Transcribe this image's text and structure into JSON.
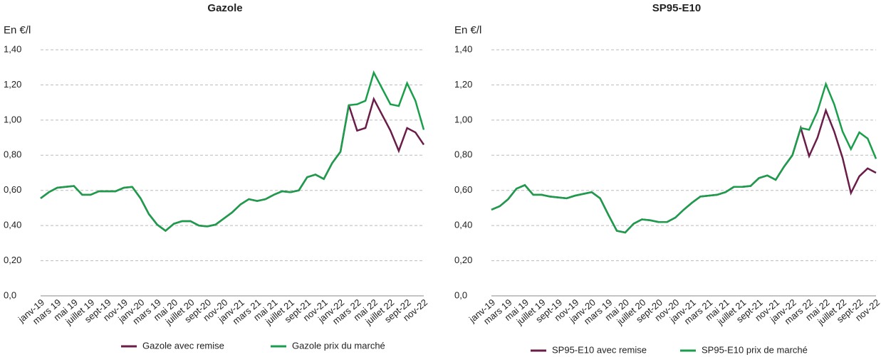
{
  "chart_data": [
    {
      "type": "line",
      "title": "Gazole",
      "y_label": "En €/l",
      "categories": [
        "janv-19",
        null,
        "mars 19",
        null,
        "mai 19",
        null,
        "juillet 19",
        null,
        "sept-19",
        null,
        "nov-19",
        null,
        "janv-20",
        null,
        "mars 19",
        null,
        "mai 20",
        null,
        "juillet 20",
        null,
        "sept-20",
        null,
        "nov-20",
        null,
        "janv-21",
        null,
        "mars 21",
        null,
        "mai 21",
        null,
        "juillet 21",
        null,
        "sept-21",
        null,
        "nov-21",
        null,
        "janv-22",
        null,
        "mars 22",
        null,
        "mai 22",
        null,
        "juillet 22",
        null,
        "sept-22",
        null,
        "nov-22"
      ],
      "series": [
        {
          "name": "Gazole avec remise",
          "color": "#6b1d4a",
          "values": [
            0.555,
            0.59,
            0.615,
            0.62,
            0.625,
            0.575,
            0.575,
            0.595,
            0.595,
            0.595,
            0.615,
            0.62,
            0.555,
            0.465,
            0.405,
            0.37,
            0.41,
            0.425,
            0.425,
            0.4,
            0.395,
            0.405,
            0.44,
            0.475,
            0.52,
            0.55,
            0.54,
            0.55,
            0.575,
            0.595,
            0.59,
            0.6,
            0.675,
            0.69,
            0.665,
            0.755,
            0.82,
            1.085,
            0.94,
            0.955,
            1.12,
            1.03,
            0.94,
            0.825,
            0.955,
            0.93,
            0.86
          ]
        },
        {
          "name": "Gazole prix du marché",
          "color": "#1a9e4b",
          "values": [
            0.555,
            0.59,
            0.615,
            0.62,
            0.625,
            0.575,
            0.575,
            0.595,
            0.595,
            0.595,
            0.615,
            0.62,
            0.555,
            0.465,
            0.405,
            0.37,
            0.41,
            0.425,
            0.425,
            0.4,
            0.395,
            0.405,
            0.44,
            0.475,
            0.52,
            0.55,
            0.54,
            0.55,
            0.575,
            0.595,
            0.59,
            0.6,
            0.675,
            0.69,
            0.665,
            0.755,
            0.82,
            1.085,
            1.09,
            1.11,
            1.27,
            1.18,
            1.09,
            1.08,
            1.21,
            1.11,
            0.945
          ]
        }
      ],
      "ylim": [
        0,
        1.4
      ],
      "yticks": [
        {
          "value": 0,
          "label": "0,0"
        },
        {
          "value": 0.2,
          "label": "0,20"
        },
        {
          "value": 0.4,
          "label": "0,40"
        },
        {
          "value": 0.6,
          "label": "0,60"
        },
        {
          "value": 0.8,
          "label": "0,80"
        },
        {
          "value": 1.0,
          "label": "1,00"
        },
        {
          "value": 1.2,
          "label": "1,20"
        },
        {
          "value": 1.4,
          "label": "1,40"
        }
      ],
      "grid": true,
      "legend": "bottom"
    },
    {
      "type": "line",
      "title": "SP95-E10",
      "y_label": "En €/l",
      "categories": [
        "janv-19",
        null,
        "mars 19",
        null,
        "mai 19",
        null,
        "juillet 19",
        null,
        "sept-19",
        null,
        "nov-19",
        null,
        "janv-20",
        null,
        "mars 19",
        null,
        "mai 20",
        null,
        "juillet 20",
        null,
        "sept-20",
        null,
        "nov-20",
        null,
        "janv-21",
        null,
        "mars 21",
        null,
        "mai 21",
        null,
        "juillet 21",
        null,
        "sept-21",
        null,
        "nov-21",
        null,
        "janv-22",
        null,
        "mars 22",
        null,
        "mai 22",
        null,
        "juillet 22",
        null,
        "sept-22",
        null,
        "nov-22"
      ],
      "series": [
        {
          "name": "SP95-E10 avec remise",
          "color": "#6b1d4a",
          "values": [
            0.49,
            0.51,
            0.55,
            0.61,
            0.63,
            0.575,
            0.575,
            0.565,
            0.56,
            0.555,
            0.57,
            0.58,
            0.59,
            0.555,
            0.46,
            0.37,
            0.36,
            0.41,
            0.435,
            0.43,
            0.42,
            0.42,
            0.445,
            0.49,
            0.53,
            0.565,
            0.57,
            0.575,
            0.59,
            0.62,
            0.62,
            0.625,
            0.67,
            0.685,
            0.66,
            0.735,
            0.8,
            0.955,
            0.795,
            0.9,
            1.055,
            0.935,
            0.785,
            0.585,
            0.68,
            0.725,
            0.7
          ]
        },
        {
          "name": "SP95-E10 prix de marché",
          "color": "#1a9e4b",
          "values": [
            0.49,
            0.51,
            0.55,
            0.61,
            0.63,
            0.575,
            0.575,
            0.565,
            0.56,
            0.555,
            0.57,
            0.58,
            0.59,
            0.555,
            0.46,
            0.37,
            0.36,
            0.41,
            0.435,
            0.43,
            0.42,
            0.42,
            0.445,
            0.49,
            0.53,
            0.565,
            0.57,
            0.575,
            0.59,
            0.62,
            0.62,
            0.625,
            0.67,
            0.685,
            0.66,
            0.735,
            0.8,
            0.955,
            0.945,
            1.05,
            1.205,
            1.09,
            0.935,
            0.835,
            0.93,
            0.895,
            0.78
          ]
        }
      ],
      "ylim": [
        0,
        1.4
      ],
      "yticks": [
        {
          "value": 0,
          "label": "0,0"
        },
        {
          "value": 0.2,
          "label": "0,20"
        },
        {
          "value": 0.4,
          "label": "0,40"
        },
        {
          "value": 0.6,
          "label": "0,60"
        },
        {
          "value": 0.8,
          "label": "0,80"
        },
        {
          "value": 1.0,
          "label": "1,00"
        },
        {
          "value": 1.2,
          "label": "1,20"
        },
        {
          "value": 1.4,
          "label": "1,40"
        }
      ],
      "grid": true,
      "legend": "bottom"
    }
  ]
}
